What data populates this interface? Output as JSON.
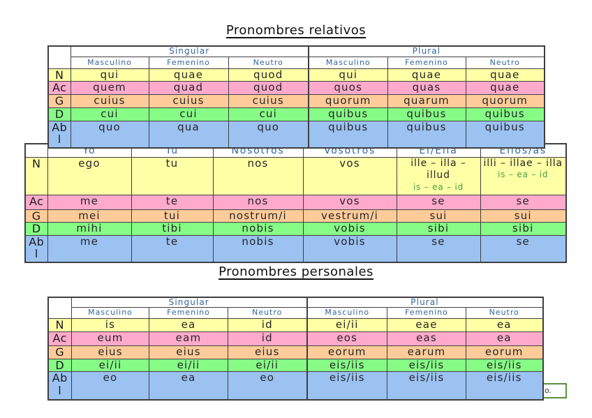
{
  "titles": [
    {
      "text": "Pronombres relativos"
    },
    {
      "text": "Pronombres personales"
    }
  ],
  "colors": {
    "header_text": "#336699",
    "green_text": "#44a044",
    "table_border": "#3f3f3f",
    "frame_border": "#5a8f3e",
    "row_yellow": "#ffffa6",
    "row_pink": "#ffaacc",
    "row_orange": "#ffcc99",
    "row_green": "#86fb86",
    "row_blue": "#9cc2f2"
  },
  "tables": [
    {
      "name": "relative-pronouns-table",
      "groups": [
        {
          "label": "Singular",
          "span": 3
        },
        {
          "label": "Plural",
          "span": 3
        }
      ],
      "column_headers": [
        "Masculino",
        "Femenino",
        "Neutro",
        "Masculino",
        "Femenino",
        "Neutro"
      ],
      "rows": [
        {
          "case": "N",
          "color_key": "row_yellow",
          "cells": [
            "qui",
            "quae",
            "quod",
            "qui",
            "quae",
            "quae"
          ]
        },
        {
          "case": "Ac",
          "color_key": "row_pink",
          "cells": [
            "quem",
            "quad",
            "quod",
            "quos",
            "quas",
            "quae"
          ]
        },
        {
          "case": "G",
          "color_key": "row_orange",
          "cells": [
            "cuius",
            "cuius",
            "cuius",
            "quorum",
            "quarum",
            "quorum"
          ]
        },
        {
          "case": "D",
          "color_key": "row_green",
          "cells": [
            "cui",
            "cui",
            "cui",
            "quibus",
            "quibus",
            "quibus"
          ]
        },
        {
          "case": "Ab\nl",
          "color_key": "row_blue",
          "cells": [
            "quo",
            "qua",
            "quo",
            "quibus",
            "quibus",
            "quibus"
          ]
        }
      ]
    },
    {
      "name": "personal-pronouns-table",
      "column_headers": [
        "Yo",
        "Tu",
        "Nosotros",
        "Vosotros",
        "El/Ella",
        "Ellos/as"
      ],
      "rows": [
        {
          "case": "N",
          "color_key": "row_yellow",
          "cells": [
            "ego",
            "tu",
            "nos",
            "vos",
            {
              "main": "ille – illa –\nillud",
              "sub": "is – ea – id"
            },
            {
              "main": "illi – illae – illa",
              "sub": "is – ea – id"
            }
          ]
        },
        {
          "case": "Ac",
          "color_key": "row_pink",
          "cells": [
            "me",
            "te",
            "nos",
            "vos",
            "se",
            "se"
          ]
        },
        {
          "case": "G",
          "color_key": "row_orange",
          "cells": [
            "mei",
            "tui",
            "nostrum/i",
            "vestrum/i",
            "sui",
            "sui"
          ]
        },
        {
          "case": "D",
          "color_key": "row_green",
          "cells": [
            "mihi",
            "tibi",
            "nobis",
            "vobis",
            "sibi",
            "sibi"
          ]
        },
        {
          "case": "Ab\nl",
          "color_key": "row_blue",
          "cells": [
            "me",
            "te",
            "nobis",
            "vobis",
            "se",
            "se"
          ]
        }
      ]
    },
    {
      "name": "is-ea-id-pronouns-table",
      "groups": [
        {
          "label": "Singular",
          "span": 3
        },
        {
          "label": "Plural",
          "span": 3
        }
      ],
      "column_headers": [
        "Masculino",
        "Femenino",
        "Neutro",
        "Masculino",
        "Femenino",
        "Neutro"
      ],
      "rows": [
        {
          "case": "N",
          "color_key": "row_yellow",
          "cells": [
            "is",
            "ea",
            "id",
            "ei/ii",
            "eae",
            "ea"
          ]
        },
        {
          "case": "Ac",
          "color_key": "row_pink",
          "cells": [
            "eum",
            "eam",
            "id",
            "eos",
            "eas",
            "ea"
          ]
        },
        {
          "case": "G",
          "color_key": "row_orange",
          "cells": [
            "eius",
            "eius",
            "eius",
            "eorum",
            "earum",
            "eorum"
          ]
        },
        {
          "case": "D",
          "color_key": "row_green",
          "cells": [
            "ei/ii",
            "ei/ii",
            "ei/ii",
            "eis/iis",
            "eis/iis",
            "eis/iis"
          ]
        },
        {
          "case": "Ab\nl",
          "color_key": "row_blue",
          "cells": [
            "eo",
            "ea",
            "eo",
            "eis/iis",
            "eis/iis",
            "eis/iis"
          ]
        }
      ]
    }
  ],
  "text_frame": {
    "text": "o."
  }
}
